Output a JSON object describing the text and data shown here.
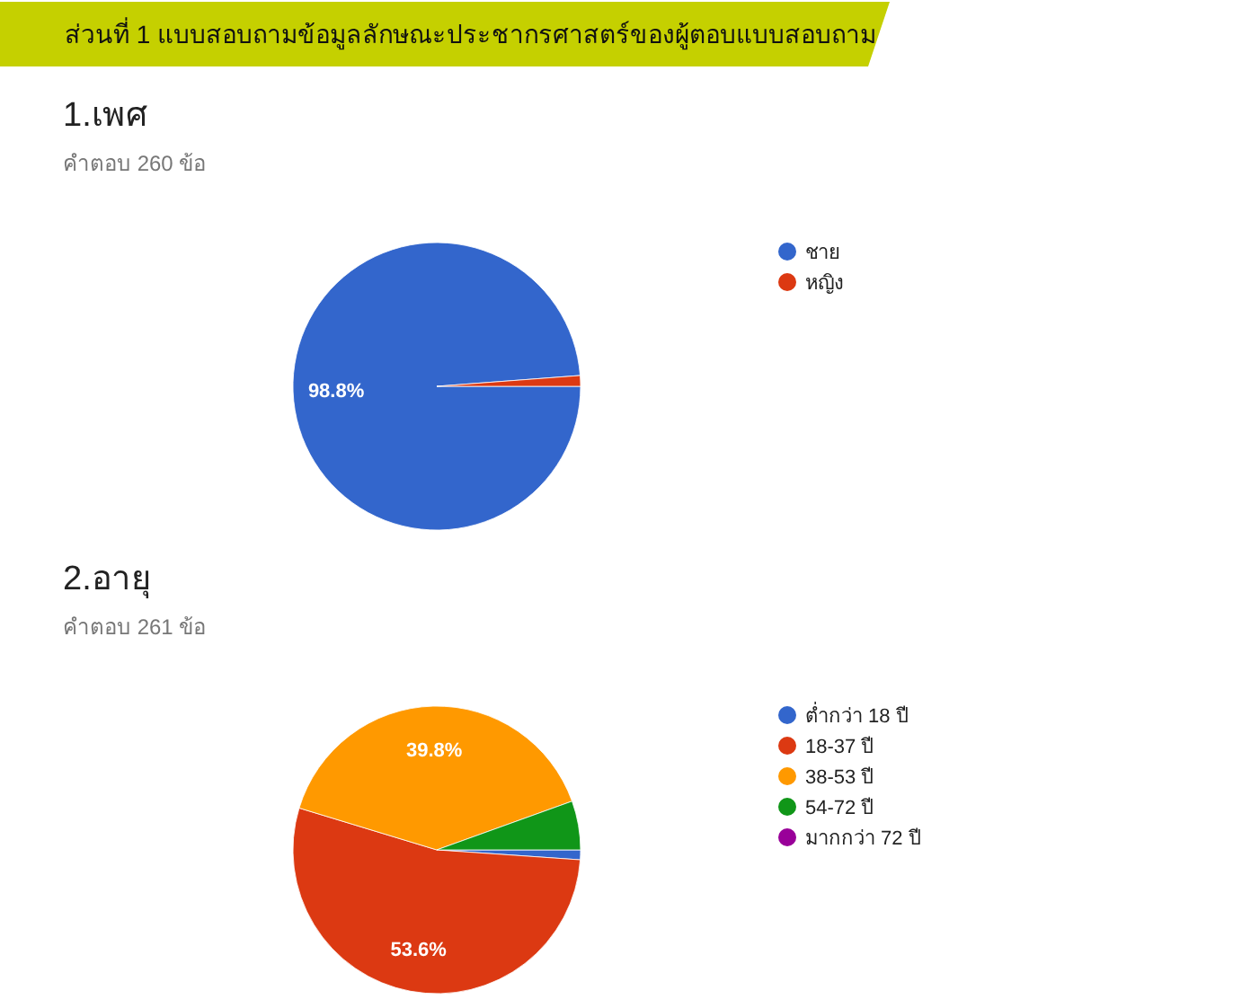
{
  "chart_data": [
    {
      "type": "pie",
      "title": "1.เพศ",
      "subtitle": "คำตอบ 260 ข้อ",
      "annotations": [
        "ส่วนที่ 1 แบบสอบถามข้อมูลลักษณะประชากรศาสตร์ของผู้ตอบแบบสอบถาม"
      ],
      "categories": [
        "ชาย",
        "หญิง"
      ],
      "values": [
        98.8,
        1.2
      ],
      "colors": [
        "#3366cc",
        "#dc3912"
      ],
      "value_labels": [
        "98.8%",
        null
      ],
      "legend": "top right"
    },
    {
      "type": "pie",
      "title": "2.อายุ",
      "subtitle": "คำตอบ 261 ข้อ",
      "categories": [
        "ต่ำกว่า 18 ปี",
        "18-37 ปี",
        "38-53 ปี",
        "54-72 ปี",
        "มากกว่า 72 ปี"
      ],
      "values": [
        1.1,
        53.6,
        39.8,
        5.5,
        0
      ],
      "colors": [
        "#3366cc",
        "#dc3912",
        "#ff9900",
        "#109618",
        "#990099"
      ],
      "value_labels": [
        null,
        "53.6%",
        "39.8%",
        null,
        null
      ],
      "legend": "top right"
    }
  ]
}
